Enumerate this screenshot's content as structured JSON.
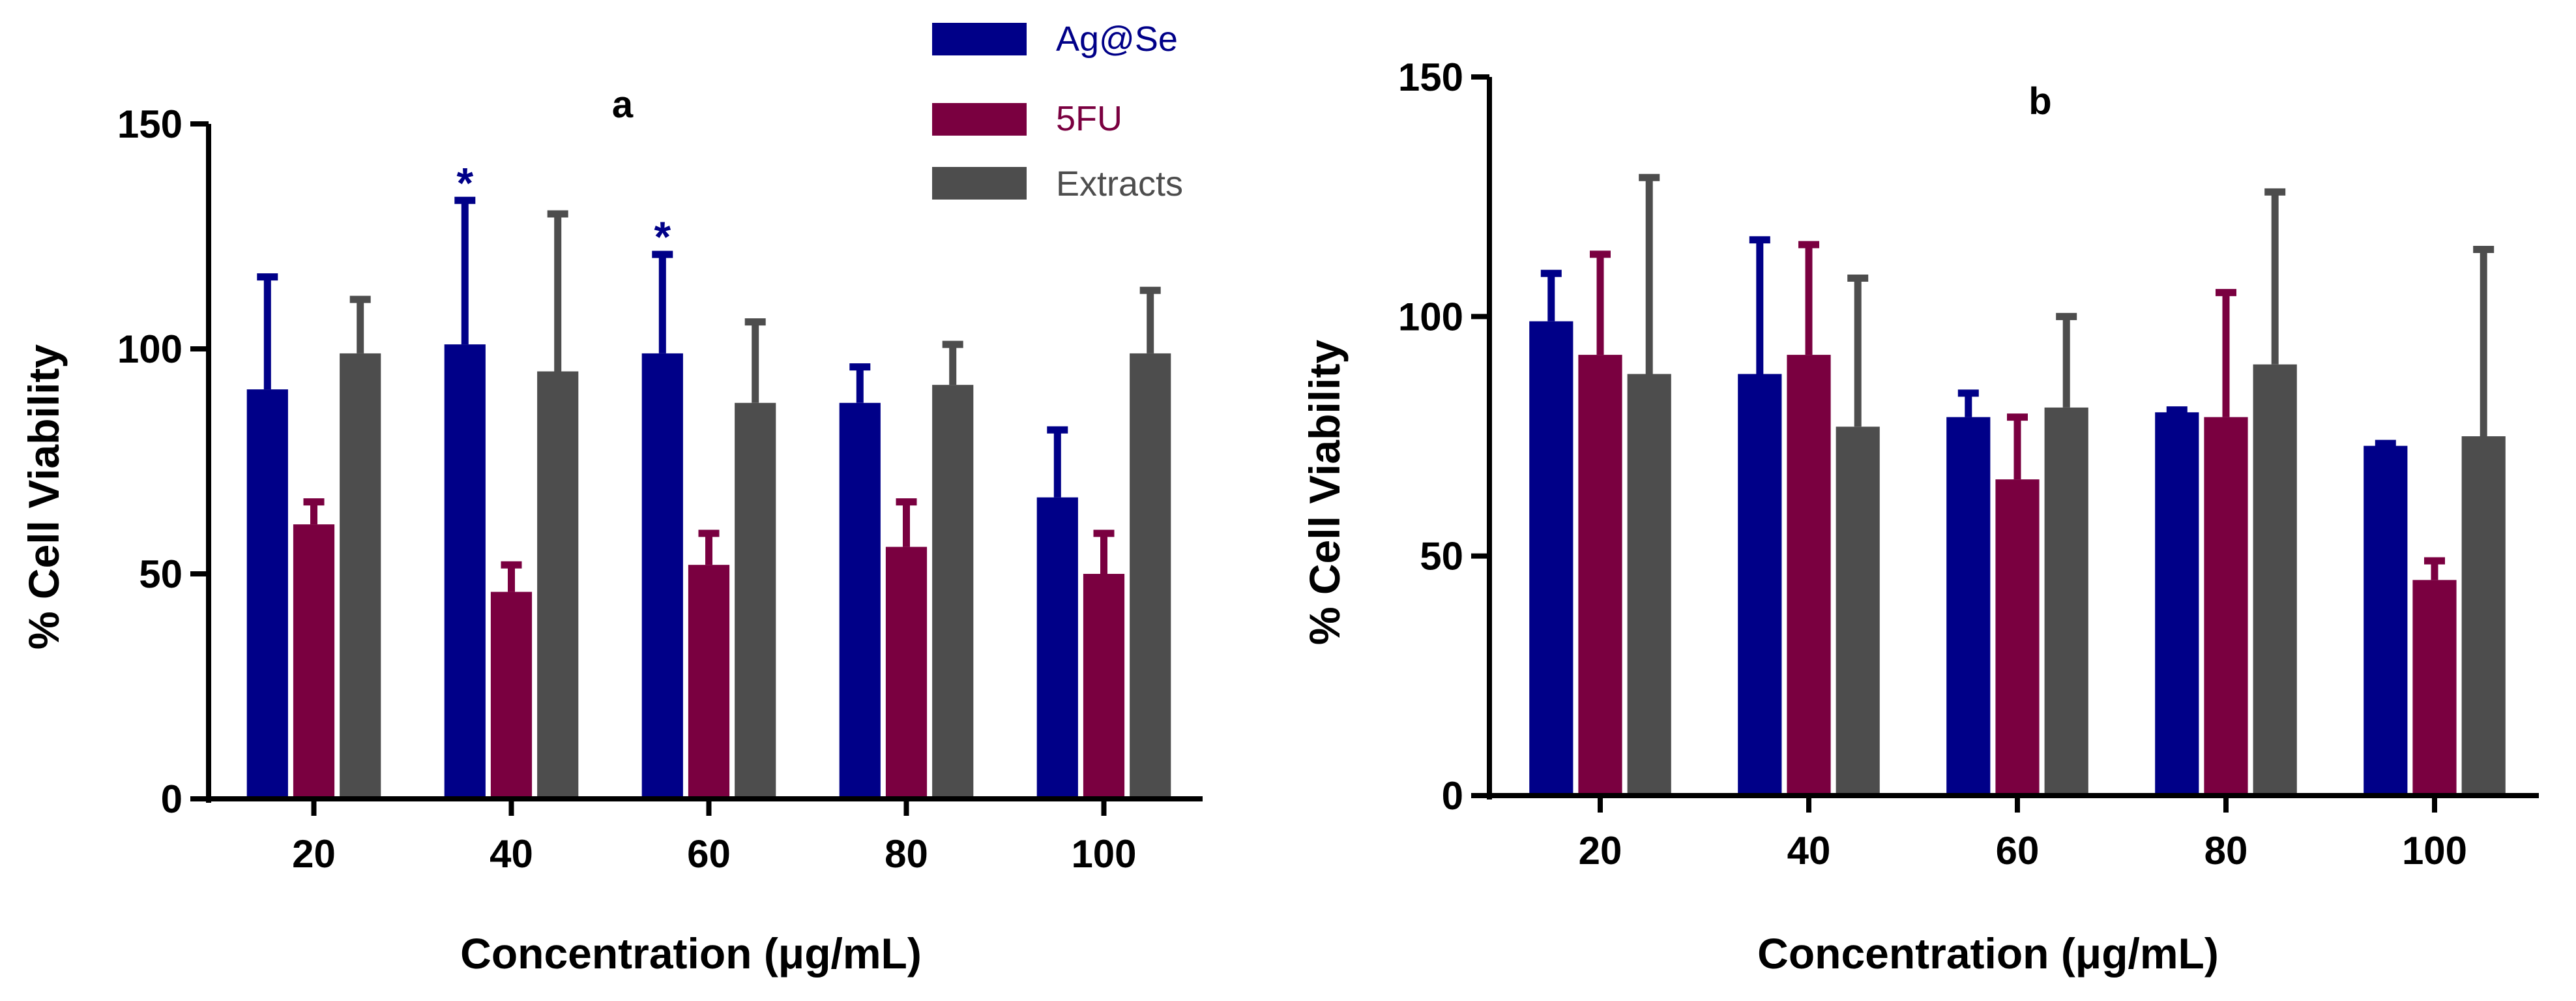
{
  "legend": [
    {
      "name": "Ag@Se",
      "color": "#000088"
    },
    {
      "name": "5FU",
      "color": "#7a0040"
    },
    {
      "name": "Extracts",
      "color": "#4d4d4d"
    }
  ],
  "chart_data": [
    {
      "type": "bar",
      "panel": "a",
      "title": "a",
      "xlabel": "Concentration (μg/mL)",
      "ylabel": "% Cell Viability",
      "categories": [
        "20",
        "40",
        "60",
        "80",
        "100"
      ],
      "ylim": [
        0,
        150
      ],
      "yticks": [
        "0",
        "50",
        "100",
        "150"
      ],
      "series": [
        {
          "name": "Ag@Se",
          "values": [
            91,
            101,
            99,
            88,
            67
          ],
          "errors": [
            25,
            32,
            22,
            8,
            15
          ]
        },
        {
          "name": "5FU",
          "values": [
            61,
            46,
            52,
            56,
            50
          ],
          "errors": [
            5,
            6,
            7,
            10,
            9
          ]
        },
        {
          "name": "Extracts",
          "values": [
            99,
            95,
            88,
            92,
            99
          ],
          "errors": [
            12,
            35,
            18,
            9,
            14
          ]
        }
      ],
      "annotations": [
        {
          "text": "*",
          "category": "40",
          "series": "Ag@Se"
        },
        {
          "text": "*",
          "category": "60",
          "series": "Ag@Se"
        }
      ]
    },
    {
      "type": "bar",
      "panel": "b",
      "title": "b",
      "xlabel": "Concentration (μg/mL)",
      "ylabel": "% Cell Viability",
      "categories": [
        "20",
        "40",
        "60",
        "80",
        "100"
      ],
      "ylim": [
        0,
        150
      ],
      "yticks": [
        "0",
        "50",
        "100",
        "150"
      ],
      "series": [
        {
          "name": "Ag@Se",
          "values": [
            99,
            88,
            79,
            80,
            73
          ],
          "errors": [
            10,
            28,
            5,
            0.5,
            0.5
          ]
        },
        {
          "name": "5FU",
          "values": [
            92,
            92,
            66,
            79,
            45
          ],
          "errors": [
            21,
            23,
            13,
            26,
            4
          ]
        },
        {
          "name": "Extracts",
          "values": [
            88,
            77,
            81,
            90,
            75
          ],
          "errors": [
            41,
            31,
            19,
            36,
            39
          ]
        }
      ],
      "annotations": []
    }
  ]
}
